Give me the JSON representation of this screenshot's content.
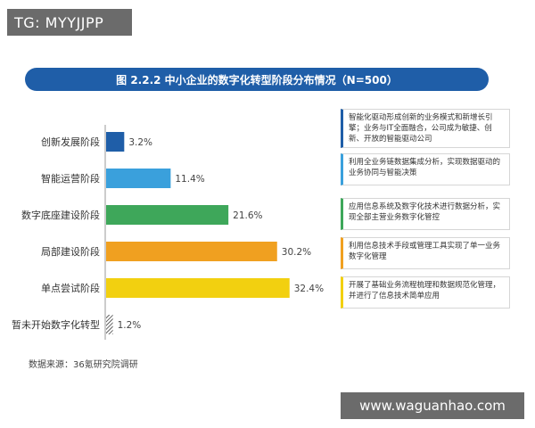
{
  "watermark_top": "TG: MYYJJPP",
  "watermark_bottom": "www.waguanhao.com",
  "source": "数据来源：36氪研究院调研",
  "chart_data": {
    "type": "bar",
    "orientation": "horizontal",
    "title": "图 2.2.2 中小企业的数字化转型阶段分布情况（N=500）",
    "categories": [
      "创新发展阶段",
      "智能运营阶段",
      "数字底座建设阶段",
      "局部建设阶段",
      "单点尝试阶段",
      "暂未开始数字化转型"
    ],
    "values": [
      3.2,
      11.4,
      21.6,
      30.2,
      32.4,
      1.2
    ],
    "value_labels": [
      "3.2%",
      "11.4%",
      "21.6%",
      "30.2%",
      "32.4%",
      "1.2%"
    ],
    "colors": [
      "#1f5ea8",
      "#3aa0dc",
      "#3ea75a",
      "#f0a020",
      "#f2d010",
      "#333333"
    ],
    "xlim": [
      0,
      35
    ],
    "grid": false,
    "legend": "none"
  },
  "notes": [
    {
      "text": "智能化驱动形成创新的业务模式和新增长引擎；业务与IT全面融合，公司成为敏捷、创新、开放的智能驱动公司",
      "color": "#1f5ea8"
    },
    {
      "text": "利用全业务链数据集成分析，实现数据驱动的业务协同与智能决策",
      "color": "#3aa0dc"
    },
    {
      "text": "应用信息系统及数字化技术进行数据分析，实现全部主营业务数字化管控",
      "color": "#3ea75a"
    },
    {
      "text": "利用信息技术手段或管理工具实现了单一业务数字化管理",
      "color": "#f0a020"
    },
    {
      "text": "开展了基础业务流程梳理和数据规范化管理，并进行了信息技术简单应用",
      "color": "#f2d010"
    }
  ]
}
